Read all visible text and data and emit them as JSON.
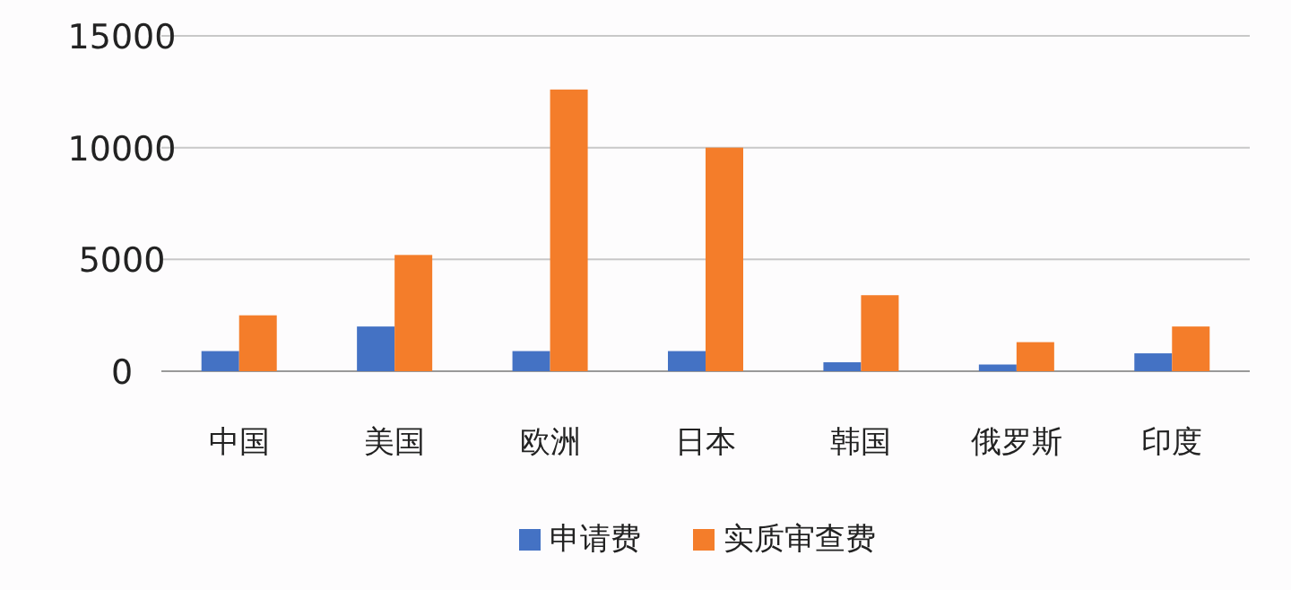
{
  "chart_data": {
    "type": "bar",
    "categories": [
      "中国",
      "美国",
      "欧洲",
      "日本",
      "韩国",
      "俄罗斯",
      "印度"
    ],
    "series": [
      {
        "name": "申请费",
        "color": "#4472c4",
        "values": [
          900,
          2000,
          900,
          900,
          400,
          300,
          800
        ]
      },
      {
        "name": "实质审查费",
        "color": "#f47d2a",
        "values": [
          2500,
          5200,
          12600,
          10000,
          3400,
          1300,
          2000
        ]
      }
    ],
    "ylim": [
      0,
      15000
    ],
    "yticks": [
      0,
      5000,
      10000,
      15000
    ],
    "grid": "y",
    "legend": "bottom"
  }
}
